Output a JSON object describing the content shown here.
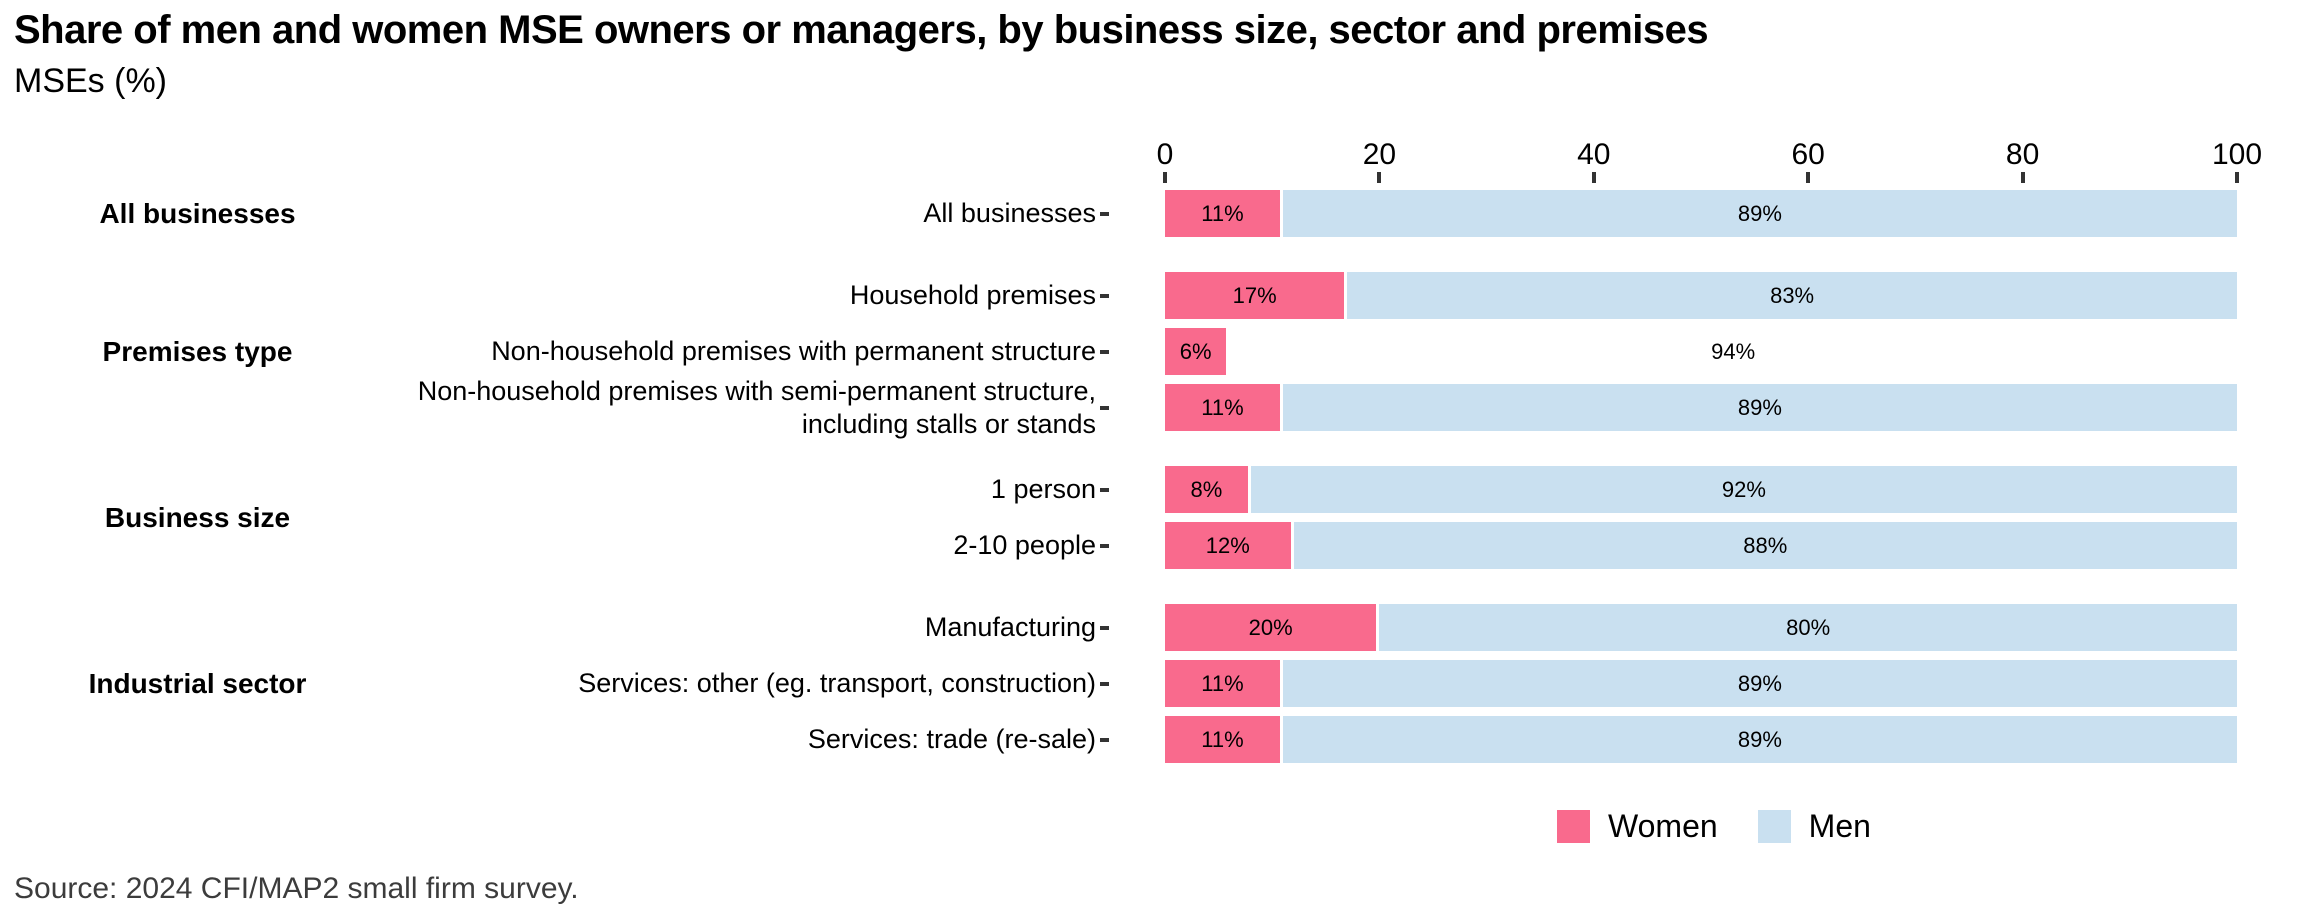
{
  "header": {
    "title": "Share of men and women MSE owners or managers, by business size, sector and premises",
    "subtitle": "MSEs (%)"
  },
  "footer": {
    "source": "Source: 2024 CFI/MAP2 small firm survey."
  },
  "legend": {
    "items": [
      {
        "label": "Women",
        "color": "#F96A8D"
      },
      {
        "label": "Men",
        "color": "#C9E0F0"
      }
    ]
  },
  "chart_data": {
    "type": "bar",
    "orientation": "horizontal",
    "stacked": true,
    "title": "Share of men and women MSE owners or managers, by business size, sector and premises",
    "subtitle": "MSEs (%)",
    "xlabel": "",
    "ylabel": "",
    "unit": "%",
    "xlim": [
      0,
      100
    ],
    "x_ticks": [
      0,
      20,
      40,
      60,
      80,
      100
    ],
    "axis_position": "top",
    "grid": false,
    "legend_position": "bottom-right",
    "series_names": [
      "Women",
      "Men"
    ],
    "colors": {
      "Women": "#F96A8D",
      "Men": "#C9E0F0"
    },
    "groups": [
      {
        "label": "All businesses",
        "rows": [
          {
            "label": "All businesses",
            "women": 11,
            "men": 89
          }
        ]
      },
      {
        "label": "Premises type",
        "rows": [
          {
            "label": "Household premises",
            "women": 17,
            "men": 83
          },
          {
            "label": "Non-household premises with permanent structure",
            "women": 6,
            "men": 94,
            "men_fill": "#FFFFFF"
          },
          {
            "label": "Non-household premises with semi-permanent structure, including stalls or stands",
            "women": 11,
            "men": 89
          }
        ]
      },
      {
        "label": "Business size",
        "rows": [
          {
            "label": "1 person",
            "women": 8,
            "men": 92
          },
          {
            "label": "2-10 people",
            "women": 12,
            "men": 88
          }
        ]
      },
      {
        "label": "Industrial sector",
        "rows": [
          {
            "label": "Manufacturing",
            "women": 20,
            "men": 80
          },
          {
            "label": "Services: other (eg. transport, construction)",
            "women": 11,
            "men": 89
          },
          {
            "label": "Services: trade (re-sale)",
            "women": 11,
            "men": 89
          }
        ]
      }
    ]
  }
}
